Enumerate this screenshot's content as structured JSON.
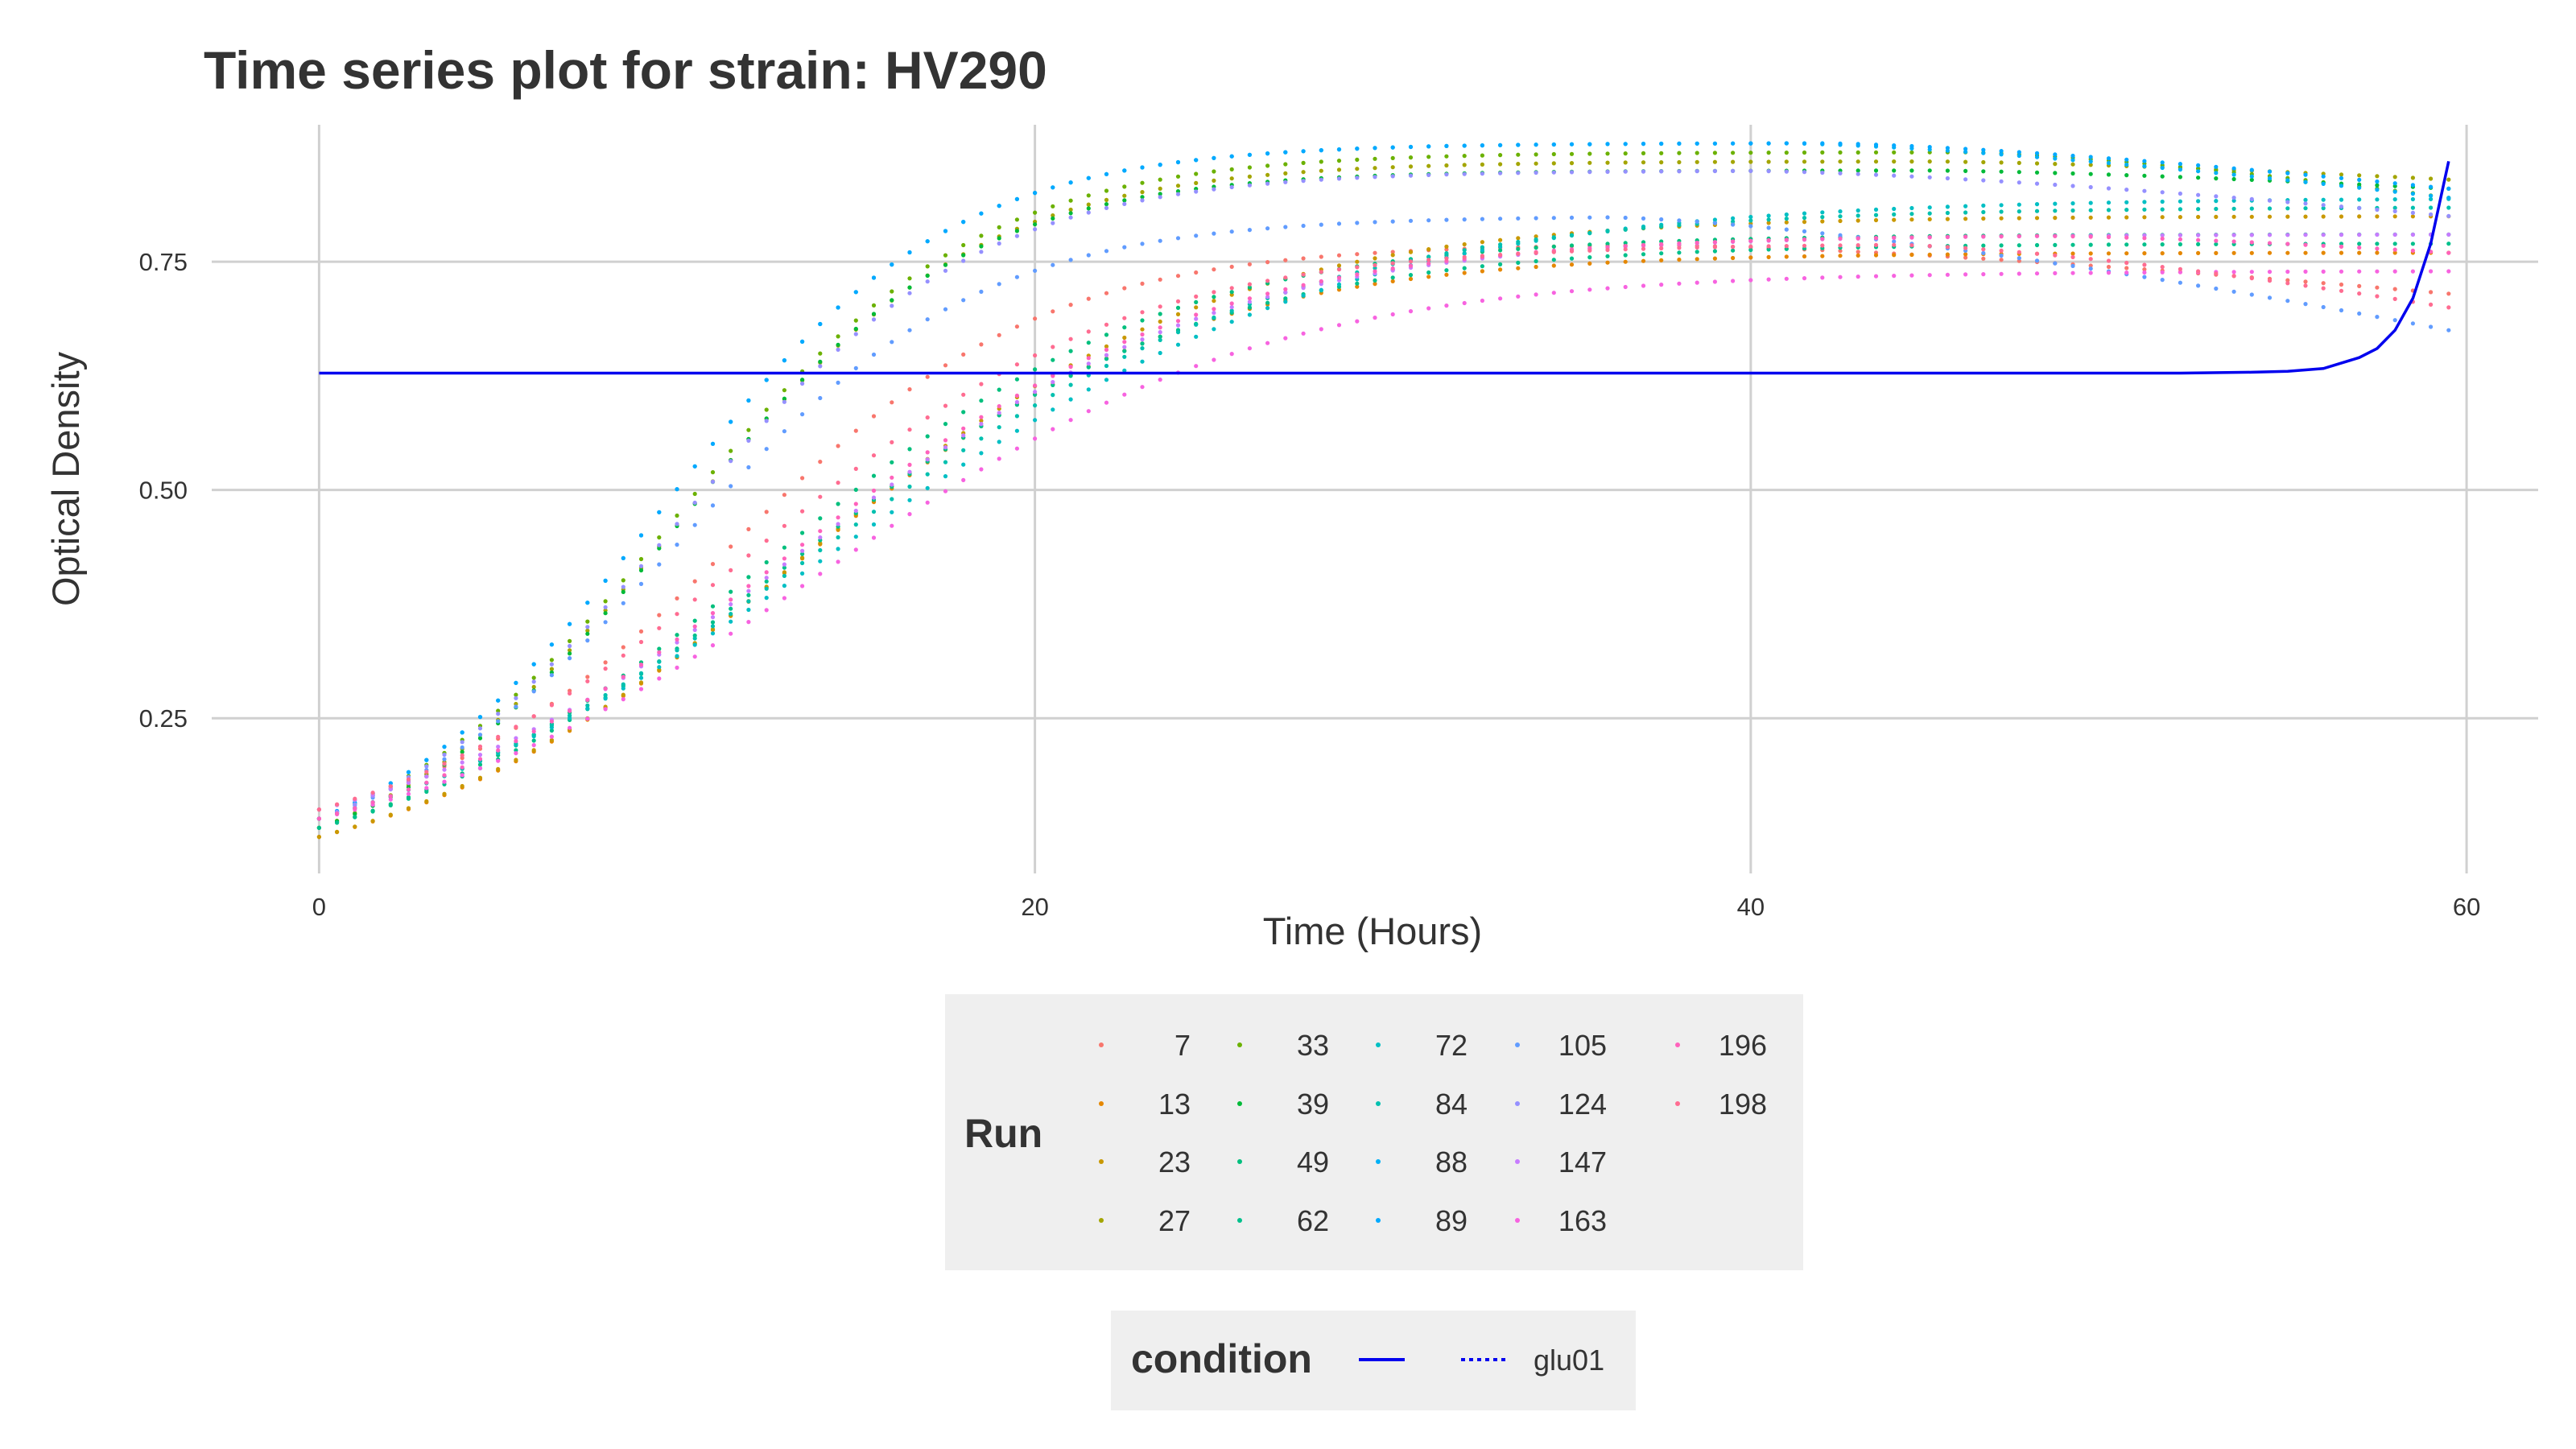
{
  "chart_data": {
    "type": "scatter",
    "title": "Time series plot for strain: HV290",
    "xlabel": "Time (Hours)",
    "ylabel": "Optical Density",
    "xlim": [
      -3,
      62
    ],
    "ylim": [
      0.08,
      0.9
    ],
    "xticks": [
      0,
      20,
      40,
      60
    ],
    "xtick_labels": [
      "0",
      "20",
      "40",
      "60"
    ],
    "yticks": [
      0.25,
      0.5,
      0.75
    ],
    "ytick_labels": [
      "0.25",
      "0.50",
      "0.75"
    ],
    "grid": true,
    "legend_placement": "bottom",
    "x_step_hours": 0.5,
    "run_legend_title": "Run",
    "condition_legend_title": "condition",
    "condition_legend_entries": [
      {
        "label": "",
        "linestyle": "solid",
        "color": "#0000ee"
      },
      {
        "label": "glu01",
        "linestyle": "dotted",
        "color": "#0000ee"
      }
    ],
    "series": [
      {
        "name": "7",
        "color": "#F8766D",
        "y0": 0.15,
        "ymax": 0.77,
        "mid": 11.5,
        "k": 0.23,
        "peak": 37,
        "decline": 0.055
      },
      {
        "name": "13",
        "color": "#E58700",
        "y0": 0.12,
        "ymax": 0.76,
        "mid": 13.0,
        "k": 0.18,
        "peak": 50,
        "decline": 0.0
      },
      {
        "name": "23",
        "color": "#C99800",
        "y0": 0.12,
        "ymax": 0.8,
        "mid": 13.5,
        "k": 0.17,
        "peak": 52,
        "decline": 0.0
      },
      {
        "name": "27",
        "color": "#A3A500",
        "y0": 0.13,
        "ymax": 0.86,
        "mid": 10.0,
        "k": 0.24,
        "peak": 45,
        "decline": 0.02
      },
      {
        "name": "33",
        "color": "#6BB100",
        "y0": 0.14,
        "ymax": 0.87,
        "mid": 10.0,
        "k": 0.24,
        "peak": 46,
        "decline": 0.05
      },
      {
        "name": "39",
        "color": "#00BA38",
        "y0": 0.13,
        "ymax": 0.85,
        "mid": 10.0,
        "k": 0.25,
        "peak": 45,
        "decline": 0.02
      },
      {
        "name": "49",
        "color": "#00BF7D",
        "y0": 0.13,
        "ymax": 0.78,
        "mid": 12.5,
        "k": 0.18,
        "peak": 55,
        "decline": 0.0
      },
      {
        "name": "62",
        "color": "#00C08B",
        "y0": 0.13,
        "ymax": 0.77,
        "mid": 13.0,
        "k": 0.17,
        "peak": 55,
        "decline": 0.0
      },
      {
        "name": "72",
        "color": "#00BFC4",
        "y0": 0.14,
        "ymax": 0.82,
        "mid": 14.5,
        "k": 0.14,
        "peak": 55,
        "decline": 0.0
      },
      {
        "name": "84",
        "color": "#00C0AF",
        "y0": 0.14,
        "ymax": 0.81,
        "mid": 14.0,
        "k": 0.15,
        "peak": 55,
        "decline": 0.0
      },
      {
        "name": "88",
        "color": "#00B0F6",
        "y0": 0.14,
        "ymax": 0.88,
        "mid": 9.5,
        "k": 0.25,
        "peak": 41,
        "decline": 0.06
      },
      {
        "name": "89",
        "color": "#00A9FF",
        "y0": 0.14,
        "ymax": 0.88,
        "mid": 9.5,
        "k": 0.25,
        "peak": 42,
        "decline": 0.05
      },
      {
        "name": "105",
        "color": "#619CFF",
        "y0": 0.14,
        "ymax": 0.8,
        "mid": 10.0,
        "k": 0.24,
        "peak": 36,
        "decline": 0.125
      },
      {
        "name": "124",
        "color": "#9590FF",
        "y0": 0.14,
        "ymax": 0.85,
        "mid": 10.0,
        "k": 0.24,
        "peak": 40,
        "decline": 0.05
      },
      {
        "name": "147",
        "color": "#C77CFF",
        "y0": 0.15,
        "ymax": 0.78,
        "mid": 13.5,
        "k": 0.17,
        "peak": 55,
        "decline": 0.0
      },
      {
        "name": "163",
        "color": "#F763E0",
        "y0": 0.14,
        "ymax": 0.74,
        "mid": 14.0,
        "k": 0.16,
        "peak": 55,
        "decline": 0.0
      },
      {
        "name": "196",
        "color": "#FF62BC",
        "y0": 0.14,
        "ymax": 0.78,
        "mid": 13.0,
        "k": 0.17,
        "peak": 48,
        "decline": 0.02
      },
      {
        "name": "198",
        "color": "#FF6C91",
        "y0": 0.15,
        "ymax": 0.77,
        "mid": 12.0,
        "k": 0.19,
        "peak": 44,
        "decline": 0.07
      }
    ],
    "condition_line": {
      "color": "#0000ee",
      "points": [
        [
          0,
          0.628
        ],
        [
          40,
          0.628
        ],
        [
          52,
          0.628
        ],
        [
          54,
          0.629
        ],
        [
          55,
          0.63
        ],
        [
          56,
          0.633
        ],
        [
          57,
          0.645
        ],
        [
          57.5,
          0.655
        ],
        [
          58,
          0.675
        ],
        [
          58.5,
          0.71
        ],
        [
          59,
          0.77
        ],
        [
          59.5,
          0.86
        ]
      ]
    }
  }
}
